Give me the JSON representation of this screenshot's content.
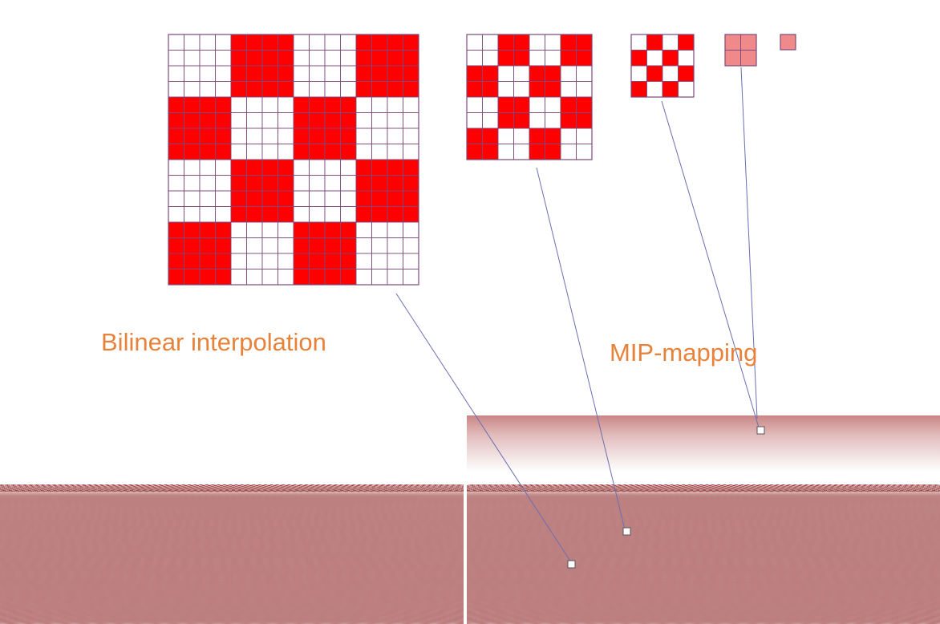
{
  "captions": {
    "bilinear": "Bilinear interpolation",
    "mipmapping": "MIP-mapping"
  },
  "colors": {
    "texel_red": "#ff0000",
    "texel_pink": "#f08a8a",
    "grid_line": "#7a4a7a",
    "caption": "#e8823a",
    "floor_dark": "#7a0000",
    "floor_light": "#ffffff",
    "mip_far": "#c98585",
    "leader_line": "#6a6fb0",
    "sample_marker": "#555555"
  },
  "textures": {
    "levels": [
      {
        "name": "level-0",
        "texels": 16,
        "checker_block": 4,
        "fill": "solid"
      },
      {
        "name": "level-1",
        "texels": 8,
        "checker_block": 2,
        "fill": "solid"
      },
      {
        "name": "level-2",
        "texels": 4,
        "checker_block": 1,
        "fill": "solid"
      },
      {
        "name": "level-3",
        "texels": 2,
        "checker_block": 0,
        "fill": "pink"
      },
      {
        "name": "level-4",
        "texels": 1,
        "checker_block": 0,
        "fill": "pink"
      }
    ]
  },
  "panels": [
    {
      "name": "bilinear-floor-panel",
      "technique": "bilinear"
    },
    {
      "name": "mipmap-floor-panel",
      "technique": "mipmap"
    }
  ]
}
